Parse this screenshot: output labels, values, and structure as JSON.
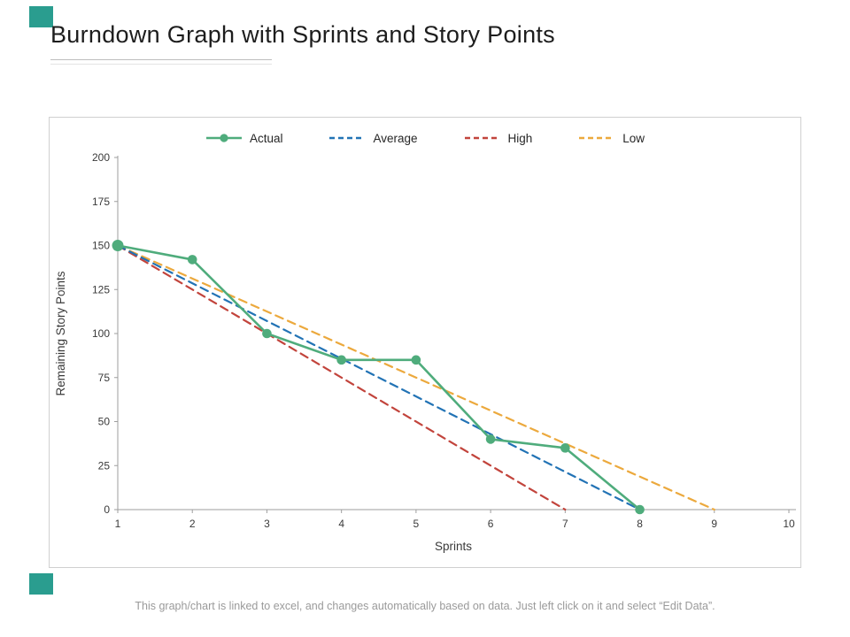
{
  "slide": {
    "title": "Burndown Graph with Sprints and Story Points",
    "footer_note": "This graph/chart is linked to excel, and changes automatically based on data. Just left click on it and select “Edit Data”.",
    "accent_color": "#2A9D8F"
  },
  "chart_data": {
    "type": "line",
    "title": "",
    "xlabel": "Sprints",
    "ylabel": "Remaining Story Points",
    "xlim": [
      1,
      10
    ],
    "ylim": [
      0,
      200
    ],
    "xticks": [
      1,
      2,
      3,
      4,
      5,
      6,
      7,
      8,
      9,
      10
    ],
    "yticks": [
      0,
      25,
      50,
      75,
      100,
      125,
      150,
      175,
      200
    ],
    "grid": false,
    "legend_position": "top",
    "axis_color": "#9e9e9e",
    "tick_label_color": "#3a3a3a",
    "series": [
      {
        "name": "Actual",
        "color": "#4FAC7C",
        "line_style": "solid",
        "marker": true,
        "x": [
          1,
          2,
          3,
          4,
          5,
          6,
          7,
          8
        ],
        "values": [
          150,
          142,
          100,
          85,
          85,
          40,
          35,
          0
        ]
      },
      {
        "name": "Average",
        "color": "#2273B5",
        "line_style": "dashed",
        "marker": false,
        "x": [
          1,
          8
        ],
        "values": [
          150,
          0
        ]
      },
      {
        "name": "High",
        "color": "#C2443C",
        "line_style": "dashed",
        "marker": false,
        "x": [
          1,
          7
        ],
        "values": [
          150,
          0
        ]
      },
      {
        "name": "Low",
        "color": "#ECA93D",
        "line_style": "dashed",
        "marker": false,
        "x": [
          1,
          9
        ],
        "values": [
          150,
          0
        ]
      }
    ]
  }
}
